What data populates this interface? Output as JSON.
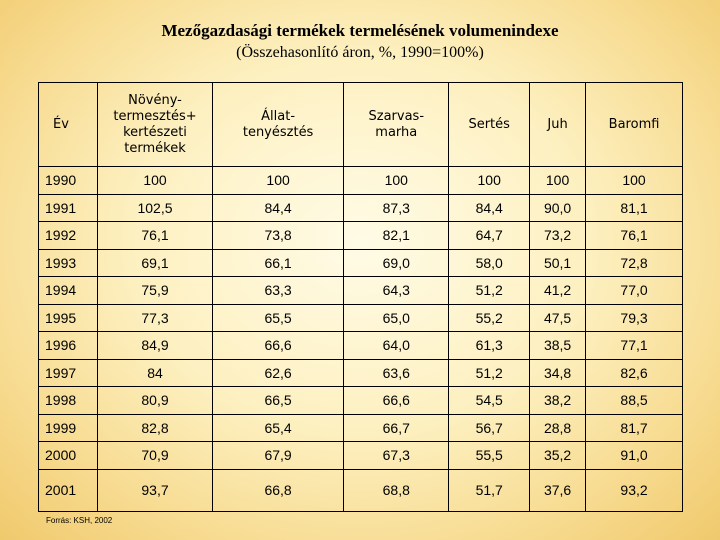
{
  "title": "Mezőgazdasági termékek termelésének volumenindexe",
  "subtitle": "(Összehasonlító áron, %, 1990=100%)",
  "table": {
    "headers": [
      "Év",
      "Növény-\ntermesztés+\nkertészeti\ntermékek",
      "Állat-\ntenyésztés",
      "Szarvas-\nmarha",
      "Sertés",
      "Juh",
      "Baromfi"
    ],
    "rows": [
      [
        "1990",
        "100",
        "100",
        "100",
        "100",
        "100",
        "100"
      ],
      [
        "1991",
        "102,5",
        "84,4",
        "87,3",
        "84,4",
        "90,0",
        "81,1"
      ],
      [
        "1992",
        "76,1",
        "73,8",
        "82,1",
        "64,7",
        "73,2",
        "76,1"
      ],
      [
        "1993",
        "69,1",
        "66,1",
        "69,0",
        "58,0",
        "50,1",
        "72,8"
      ],
      [
        "1994",
        "75,9",
        "63,3",
        "64,3",
        "51,2",
        "41,2",
        "77,0"
      ],
      [
        "1995",
        "77,3",
        "65,5",
        "65,0",
        "55,2",
        "47,5",
        "79,3"
      ],
      [
        "1996",
        "84,9",
        "66,6",
        "64,0",
        "61,3",
        "38,5",
        "77,1"
      ],
      [
        "1997",
        "84",
        "62,6",
        "63,6",
        "51,2",
        "34,8",
        "82,6"
      ],
      [
        "1998",
        "80,9",
        "66,5",
        "66,6",
        "54,5",
        "38,2",
        "88,5"
      ],
      [
        "1999",
        "82,8",
        "65,4",
        "66,7",
        "56,7",
        "28,8",
        "81,7"
      ],
      [
        "2000",
        "70,9",
        "67,9",
        "67,3",
        "55,5",
        "35,2",
        "91,0"
      ],
      [
        "2001",
        "93,7",
        "66,8",
        "68,8",
        "51,7",
        "37,6",
        "93,2"
      ]
    ]
  },
  "source": "Forrás: KSH, 2002",
  "colors": {
    "background_center": "#fffbe6",
    "background_edge": "#f0c96c"
  }
}
